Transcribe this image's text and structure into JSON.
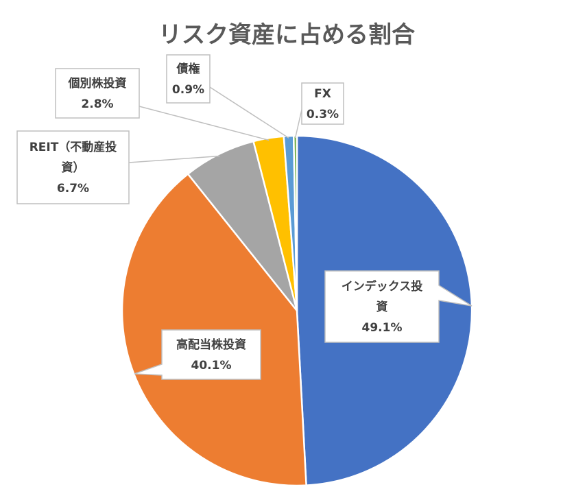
{
  "chart_data": {
    "type": "pie",
    "title": "リスク資産に占める割合",
    "slices": [
      {
        "label": "インデックス投資",
        "value": 49.1,
        "display": "49.1%",
        "color": "#4472C4"
      },
      {
        "label": "高配当株投資",
        "value": 40.1,
        "display": "40.1%",
        "color": "#ED7D31"
      },
      {
        "label": "REIT（不動産投資）",
        "value": 6.7,
        "display": "6.7%",
        "color": "#A5A5A5"
      },
      {
        "label": "個別株投資",
        "value": 2.8,
        "display": "2.8%",
        "color": "#FFC000"
      },
      {
        "label": "債権",
        "value": 0.9,
        "display": "0.9%",
        "color": "#5B9BD5"
      },
      {
        "label": "FX",
        "value": 0.3,
        "display": "0.3%",
        "color": "#70AD47"
      }
    ],
    "legend": "none",
    "data_labels": "callout"
  }
}
